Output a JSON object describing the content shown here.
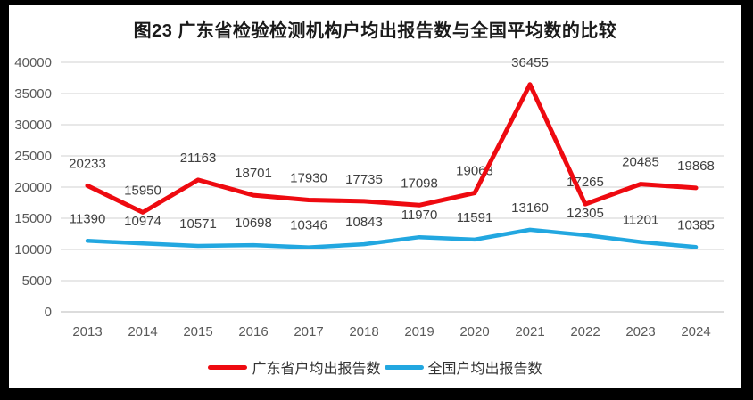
{
  "chart_data": {
    "type": "line",
    "title": "图23  广东省检验检测机构户均出报告数与全国平均数的比较",
    "categories": [
      "2013",
      "2014",
      "2015",
      "2016",
      "2017",
      "2018",
      "2019",
      "2020",
      "2021",
      "2022",
      "2023",
      "2024"
    ],
    "series": [
      {
        "name": "广东省户均出报告数",
        "color": "#ee0a10",
        "values": [
          20233,
          15950,
          21163,
          18701,
          17930,
          17735,
          17098,
          19063,
          36455,
          17265,
          20485,
          19868
        ]
      },
      {
        "name": "全国户均出报告数",
        "color": "#22a7e0",
        "values": [
          11390,
          10974,
          10571,
          10698,
          10346,
          10843,
          11970,
          11591,
          13160,
          12305,
          11201,
          10385
        ]
      }
    ],
    "xlabel": "",
    "ylabel": "",
    "ylim": [
      0,
      40000
    ],
    "ytick_step": 5000,
    "yticks": [
      "0",
      "5000",
      "10000",
      "15000",
      "20000",
      "25000",
      "30000",
      "35000",
      "40000"
    ],
    "grid": true,
    "data_labels": true,
    "legend_position": "bottom"
  },
  "colors": {
    "gridline": "#d9d9d9",
    "baseline": "#c6c6c6",
    "axis_text": "#595959",
    "data_label_text": "#404040",
    "legend_text": "#333333",
    "frame": "#000000",
    "canvas": "#ffffff"
  }
}
